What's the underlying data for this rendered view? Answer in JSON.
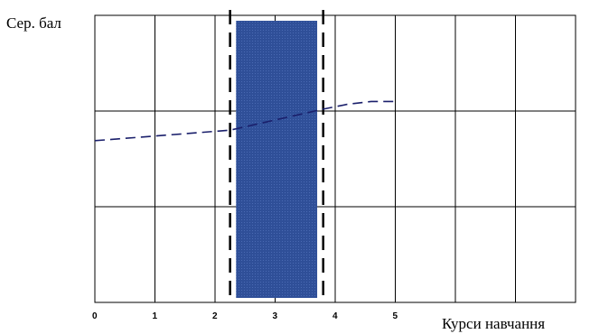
{
  "chart_data": {
    "type": "line",
    "title": "",
    "ylabel": "Сер. бал",
    "xlabel": "Курси навчання",
    "xlim": [
      0,
      8
    ],
    "ylim": [
      0,
      3
    ],
    "x_tick_labels": [
      "0",
      "1",
      "2",
      "3",
      "4",
      "5"
    ],
    "series": [
      {
        "style": "dashed",
        "color": "#1a1f6b",
        "points": [
          [
            0,
            1.69
          ],
          [
            2.25,
            1.8
          ],
          [
            3.8,
            2.02
          ],
          [
            4.2,
            2.07
          ],
          [
            4.6,
            2.1
          ],
          [
            5.0,
            2.1
          ]
        ]
      }
    ],
    "band": {
      "x_start": 2.35,
      "x_end": 3.7,
      "color": "#2e4d96"
    },
    "band_bounds": {
      "x_start": 2.25,
      "x_end": 3.8,
      "style": "long-dashed",
      "color": "#000000"
    },
    "grid": true
  }
}
